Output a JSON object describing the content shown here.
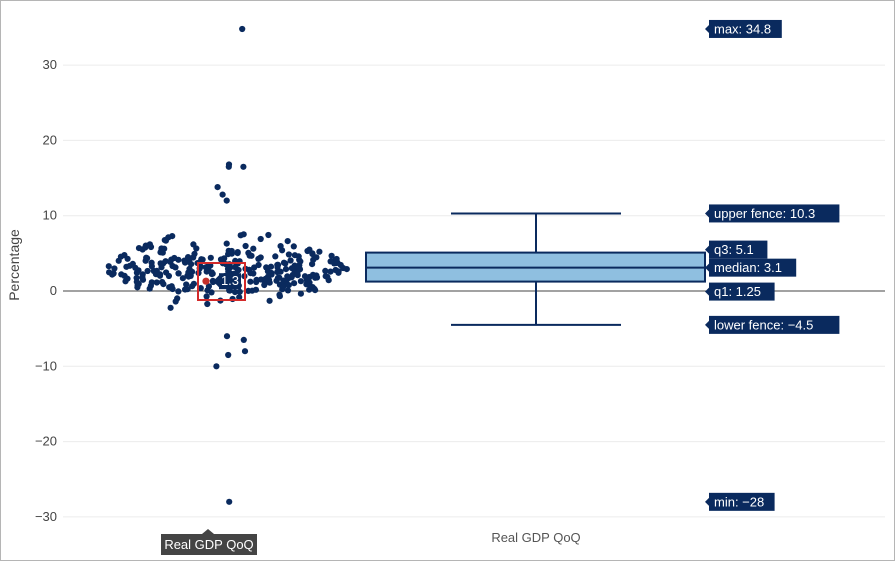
{
  "chart_data": {
    "type": "box",
    "ylabel": "Percentage",
    "ylim": [
      -32.5,
      38
    ],
    "yticks": [
      30,
      20,
      10,
      0,
      -10,
      -20,
      -30
    ],
    "ytick_labels": [
      "30",
      "20",
      "10",
      "0",
      "−10",
      "−20",
      "−30"
    ],
    "category": "Real GDP QoQ",
    "box_color": "#0a2a5e",
    "box_fill": "#8fbfe0",
    "point_color": "#0a2a5e",
    "stats": {
      "max": 34.8,
      "upper_fence": 10.3,
      "q3": 5.1,
      "median": 3.1,
      "q1": 1.25,
      "lower_fence": -4.5,
      "min": -28
    },
    "stat_labels": {
      "max": "max: 34.8",
      "upper_fence": "upper fence: 10.3",
      "q3": "q3: 5.1",
      "median": "median: 3.1",
      "q1": "q1: 1.25",
      "lower_fence": "lower fence: −4.5",
      "min": "min: −28"
    },
    "highlighted_point": {
      "value": 1.3,
      "label": "1.3"
    },
    "outliers": [
      34.8,
      16.8,
      16.5,
      16.5,
      13.8,
      12.8,
      12,
      -6,
      -6.5,
      -8,
      -8.5,
      -10,
      -28
    ]
  },
  "hover": {
    "x_label": "Real GDP QoQ"
  }
}
